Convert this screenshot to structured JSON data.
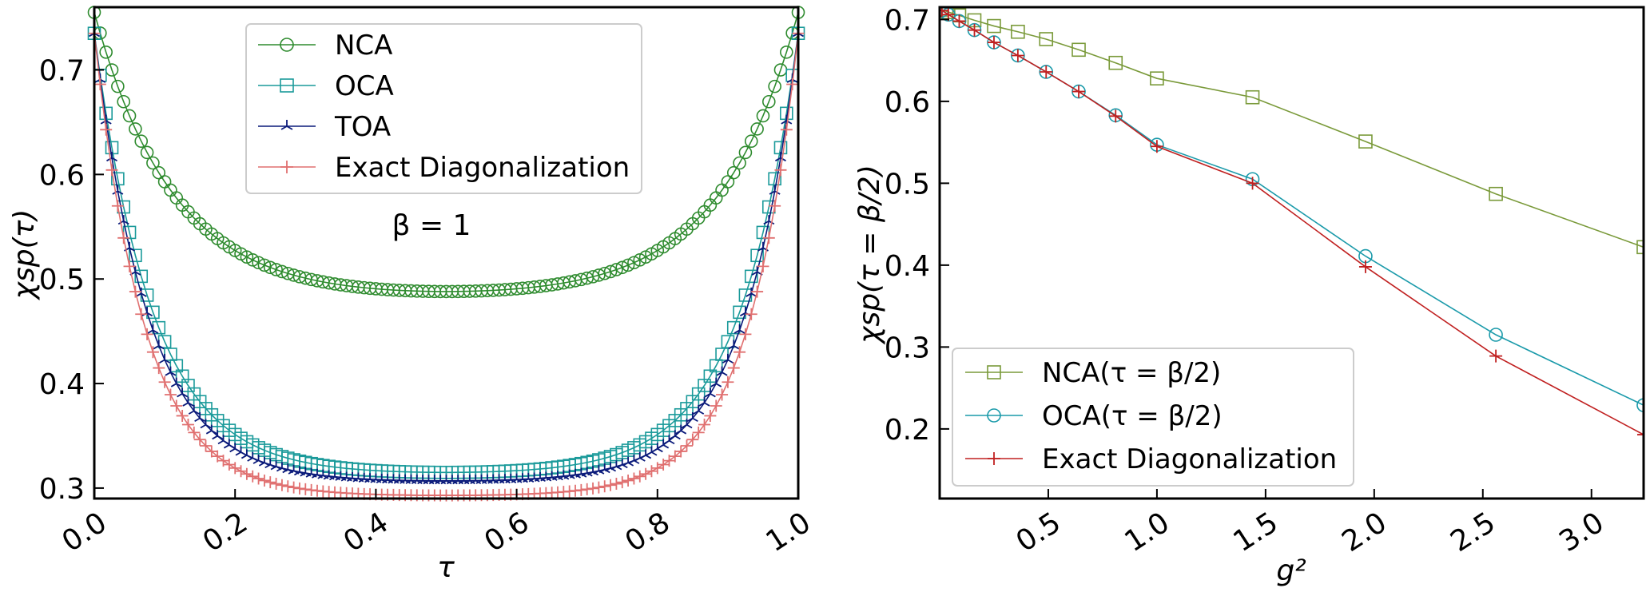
{
  "chart_data": [
    {
      "type": "line",
      "xlabel": "τ",
      "ylabel": "χsp(τ)",
      "xlim": [
        0.0,
        1.0
      ],
      "ylim": [
        0.29,
        0.76
      ],
      "xticks": [
        "0.0",
        "0.2",
        "0.4",
        "0.6",
        "0.8",
        "1.0"
      ],
      "xtick_values": [
        0.0,
        0.2,
        0.4,
        0.6,
        0.8,
        1.0
      ],
      "yticks": [
        "0.3",
        "0.4",
        "0.5",
        "0.6",
        "0.7"
      ],
      "ytick_values": [
        0.3,
        0.4,
        0.5,
        0.6,
        0.7
      ],
      "legend_position": "top-center",
      "annotation": "β = 1",
      "series": [
        {
          "name": "NCA",
          "color": "#2e8b2e",
          "marker": "circle",
          "edge": 0.755,
          "center": 0.488,
          "alpha": 9.0
        },
        {
          "name": "OCA",
          "color": "#1a9a9a",
          "marker": "square",
          "edge": 0.735,
          "center": 0.315,
          "alpha": 12.0
        },
        {
          "name": "TOA",
          "color": "#0a1a7a",
          "marker": "tri",
          "edge": 0.735,
          "center": 0.307,
          "alpha": 13.0
        },
        {
          "name": "Exact Diagonalization",
          "color": "#e07070",
          "marker": "plus",
          "edge": 0.735,
          "center": 0.293,
          "alpha": 14.0
        }
      ]
    },
    {
      "type": "line",
      "xlabel": "g²",
      "ylabel": "χsp(τ = β/2)",
      "xlim": [
        0.0,
        3.24
      ],
      "ylim": [
        0.115,
        0.715
      ],
      "xticks": [
        "0.5",
        "1.0",
        "1.5",
        "2.0",
        "2.5",
        "3.0"
      ],
      "xtick_values": [
        0.5,
        1.0,
        1.5,
        2.0,
        2.5,
        3.0
      ],
      "yticks": [
        "0.2",
        "0.3",
        "0.4",
        "0.5",
        "0.6",
        "0.7"
      ],
      "ytick_values": [
        0.2,
        0.3,
        0.4,
        0.5,
        0.6,
        0.7
      ],
      "legend_position": "bottom-left",
      "series": [
        {
          "name": "NCA(τ = β/2)",
          "color": "#7a9a3a",
          "marker": "square",
          "x": [
            0.01,
            0.04,
            0.09,
            0.16,
            0.25,
            0.36,
            0.49,
            0.64,
            0.81,
            1.0,
            1.44,
            1.96,
            2.56,
            3.24
          ],
          "y": [
            0.712,
            0.709,
            0.705,
            0.699,
            0.692,
            0.685,
            0.676,
            0.663,
            0.647,
            0.628,
            0.605,
            0.551,
            0.487,
            0.422
          ]
        },
        {
          "name": "OCA(τ = β/2)",
          "color": "#1a9aaa",
          "marker": "circle",
          "x": [
            0.01,
            0.04,
            0.09,
            0.16,
            0.25,
            0.36,
            0.49,
            0.64,
            0.81,
            1.0,
            1.44,
            1.96,
            2.56,
            3.24
          ],
          "y": [
            0.711,
            0.706,
            0.698,
            0.687,
            0.672,
            0.656,
            0.636,
            0.612,
            0.583,
            0.547,
            0.505,
            0.411,
            0.315,
            0.229
          ]
        },
        {
          "name": "Exact Diagonalization",
          "color": "#c02020",
          "marker": "plus",
          "x": [
            0.01,
            0.04,
            0.09,
            0.16,
            0.25,
            0.36,
            0.49,
            0.64,
            0.81,
            1.0,
            1.44,
            1.96,
            2.56,
            3.24
          ],
          "y": [
            0.711,
            0.706,
            0.698,
            0.687,
            0.672,
            0.656,
            0.636,
            0.612,
            0.582,
            0.545,
            0.5,
            0.398,
            0.289,
            0.193
          ]
        }
      ]
    }
  ]
}
